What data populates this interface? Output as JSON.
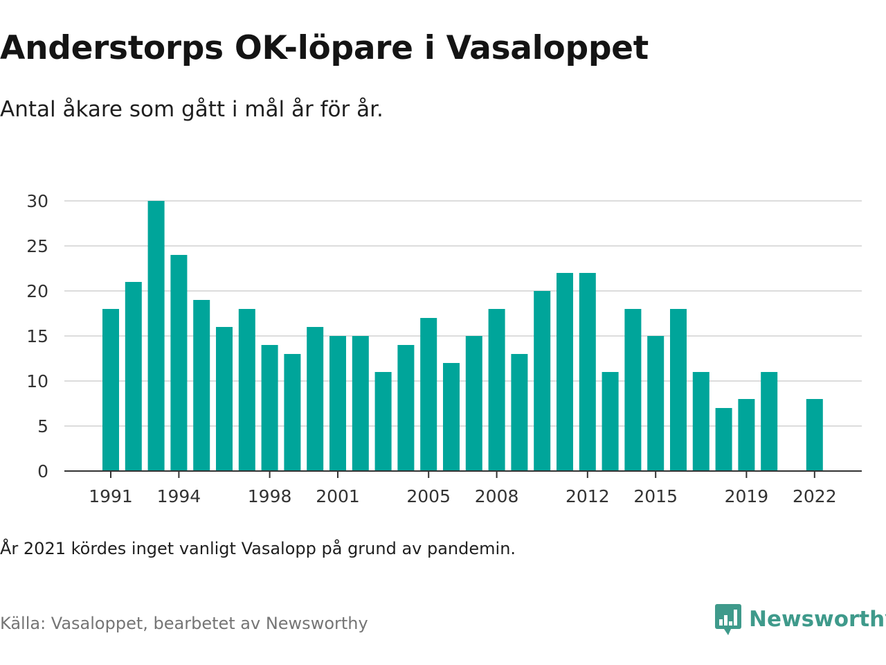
{
  "title": "Anderstorps OK-löpare i Vasaloppet",
  "subtitle": "Antal åkare som gått i mål år för år.",
  "note": "År 2021 kördes inget vanligt Vasalopp på grund av pandemin.",
  "source": "Källa: Vasaloppet, bearbetet av Newsworthy",
  "brand": {
    "name": "Newsworthy",
    "logo_icon": "newsworthy-chart-bubble-icon",
    "color": "#3f9a8b"
  },
  "colors": {
    "bar": "#00a59a",
    "grid": "#dcdcdc",
    "axis": "#333333",
    "tick_text": "#333333"
  },
  "chart_data": {
    "type": "bar",
    "x": [
      1991,
      1992,
      1993,
      1994,
      1995,
      1996,
      1997,
      1998,
      1999,
      2000,
      2001,
      2002,
      2003,
      2004,
      2005,
      2006,
      2007,
      2008,
      2009,
      2010,
      2011,
      2012,
      2013,
      2014,
      2015,
      2016,
      2017,
      2018,
      2019,
      2020,
      2021,
      2022
    ],
    "values": [
      18,
      21,
      30,
      24,
      19,
      16,
      18,
      14,
      13,
      16,
      15,
      15,
      11,
      14,
      17,
      12,
      15,
      18,
      13,
      20,
      22,
      22,
      11,
      18,
      15,
      18,
      11,
      7,
      8,
      11,
      null,
      8
    ],
    "x_tick_labels": [
      1991,
      1994,
      1998,
      2001,
      2005,
      2008,
      2012,
      2015,
      2019,
      2022
    ],
    "y_ticks": [
      0,
      5,
      10,
      15,
      20,
      25,
      30
    ],
    "ylim": [
      0,
      30
    ],
    "xlabel": "",
    "ylabel": "",
    "grid": true,
    "legend": "none"
  }
}
